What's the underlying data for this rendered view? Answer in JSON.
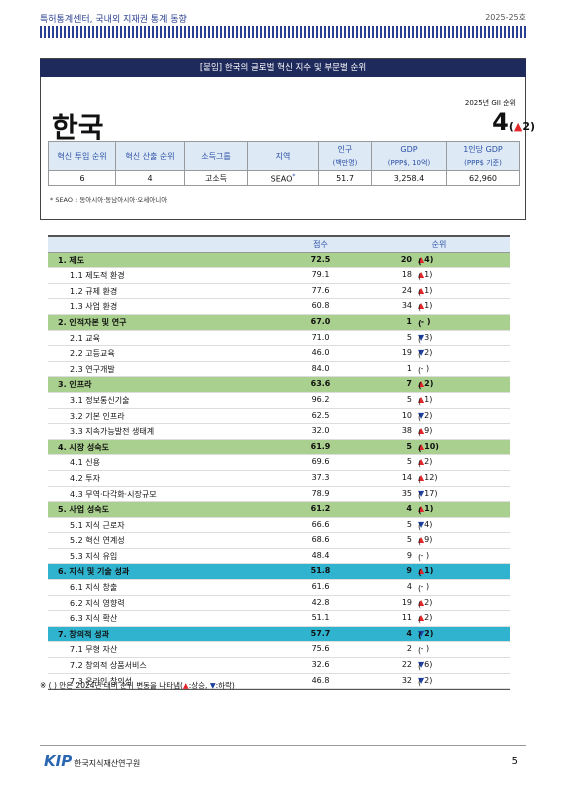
{
  "header": {
    "left": "특허통계센터, 국내외 지재권 통계 동향",
    "right": "2025-25호"
  },
  "box": {
    "title": "[붙임] 한국의 글로벌 혁신 지수 및 부문별 순위",
    "rank_note": "2025년 GII 순위",
    "country": "한국",
    "rank": "4",
    "rank_change": {
      "arrow": "▲",
      "delta": "2"
    },
    "info": {
      "headers": [
        "혁신 투입 순위",
        "혁신 산출 순위",
        "소득그룹",
        "지역",
        [
          "인구",
          "(백만명)"
        ],
        [
          "GDP",
          "(PPP$, 10억)"
        ],
        [
          "1인당 GDP",
          "(PPP$ 기준)"
        ]
      ],
      "values": [
        "6",
        "4",
        "고소득",
        "SEAO",
        "51.7",
        "3,258.4",
        "62,960"
      ],
      "region_mark": "*"
    },
    "footnote": "* SEAO : 동아시아·동남아시아·오세아니아"
  },
  "brackets": [
    "(",
    ")"
  ],
  "arrow_colors": {
    "▲": "#e3262a",
    "▼": "#1d3f9e"
  },
  "table": {
    "headers": [
      "점수",
      "순위"
    ],
    "sections": [
      {
        "label": "1. 제도",
        "score": "72.5",
        "rank": "20",
        "change": {
          "arrow": "▲",
          "delta": "4"
        },
        "color": "#a9d08e",
        "items": [
          {
            "label": "1.1 제도적 환경",
            "score": "79.1",
            "rank": "18",
            "change": {
              "arrow": "▲",
              "delta": "1"
            }
          },
          {
            "label": "1.2 규제 환경",
            "score": "77.6",
            "rank": "24",
            "change": {
              "arrow": "▲",
              "delta": "1"
            }
          },
          {
            "label": "1.3 사업 환경",
            "score": "60.8",
            "rank": "34",
            "change": {
              "arrow": "▲",
              "delta": "1"
            }
          }
        ]
      },
      {
        "label": "2. 인적자본 및 연구",
        "score": "67.0",
        "rank": "1",
        "change": {
          "delta": "-"
        },
        "color": "#a9d08e",
        "items": [
          {
            "label": "2.1 교육",
            "score": "71.0",
            "rank": "5",
            "change": {
              "arrow": "▼",
              "delta": "3"
            }
          },
          {
            "label": "2.2 고등교육",
            "score": "46.0",
            "rank": "19",
            "change": {
              "arrow": "▼",
              "delta": "2"
            }
          },
          {
            "label": "2.3 연구개발",
            "score": "84.0",
            "rank": "1",
            "change": {
              "delta": "-"
            }
          }
        ]
      },
      {
        "label": "3. 인프라",
        "score": "63.6",
        "rank": "7",
        "change": {
          "arrow": "▲",
          "delta": "2"
        },
        "color": "#a9d08e",
        "items": [
          {
            "label": "3.1 정보통신기술",
            "score": "96.2",
            "rank": "5",
            "change": {
              "arrow": "▲",
              "delta": "1"
            }
          },
          {
            "label": "3.2 기본 인프라",
            "score": "62.5",
            "rank": "10",
            "change": {
              "arrow": "▼",
              "delta": "2"
            }
          },
          {
            "label": "3.3 지속가능발전 생태계",
            "score": "32.0",
            "rank": "38",
            "change": {
              "arrow": "▲",
              "delta": "9"
            }
          }
        ]
      },
      {
        "label": "4. 시장 성숙도",
        "score": "61.9",
        "rank": "5",
        "change": {
          "arrow": "▲",
          "delta": "10"
        },
        "color": "#a9d08e",
        "items": [
          {
            "label": "4.1 신용",
            "score": "69.6",
            "rank": "5",
            "change": {
              "arrow": "▲",
              "delta": "2"
            }
          },
          {
            "label": "4.2 투자",
            "score": "37.3",
            "rank": "14",
            "change": {
              "arrow": "▲",
              "delta": "12"
            }
          },
          {
            "label": "4.3 무역·다각화·시장규모",
            "score": "78.9",
            "rank": "35",
            "change": {
              "arrow": "▼",
              "delta": "17"
            }
          }
        ]
      },
      {
        "label": "5. 사업 성숙도",
        "score": "61.2",
        "rank": "4",
        "change": {
          "arrow": "▲",
          "delta": "1"
        },
        "color": "#a9d08e",
        "items": [
          {
            "label": "5.1 지식 근로자",
            "score": "66.6",
            "rank": "5",
            "change": {
              "arrow": "▼",
              "delta": "4"
            }
          },
          {
            "label": "5.2 혁신 연계성",
            "score": "68.6",
            "rank": "5",
            "change": {
              "arrow": "▲",
              "delta": "9"
            }
          },
          {
            "label": "5.3 지식 유입",
            "score": "48.4",
            "rank": "9",
            "change": {
              "delta": "-"
            }
          }
        ]
      },
      {
        "label": "6. 지식 및 기술 성과",
        "score": "51.8",
        "rank": "9",
        "change": {
          "arrow": "▲",
          "delta": "1"
        },
        "color": "#2fb3cf",
        "items": [
          {
            "label": "6.1 지식 창출",
            "score": "61.6",
            "rank": "4",
            "change": {
              "delta": "-"
            }
          },
          {
            "label": "6.2 지식 영향력",
            "score": "42.8",
            "rank": "19",
            "change": {
              "arrow": "▲",
              "delta": "2"
            }
          },
          {
            "label": "6.3 지식 확산",
            "score": "51.1",
            "rank": "11",
            "change": {
              "arrow": "▲",
              "delta": "2"
            }
          }
        ]
      },
      {
        "label": "7. 창의적 성과",
        "score": "57.7",
        "rank": "4",
        "change": {
          "arrow": "▼",
          "delta": "2"
        },
        "color": "#2fb3cf",
        "items": [
          {
            "label": "7.1 무형 자산",
            "score": "75.6",
            "rank": "2",
            "change": {
              "delta": "-"
            }
          },
          {
            "label": "7.2 창의적 상품서비스",
            "score": "32.6",
            "rank": "22",
            "change": {
              "arrow": "▼",
              "delta": "6"
            }
          },
          {
            "label": "7.3 온라인 창의성",
            "score": "46.8",
            "rank": "32",
            "change": {
              "arrow": "▼",
              "delta": "2"
            }
          }
        ]
      }
    ]
  },
  "note": [
    "※ ( ) 안은 2024년 대비 순위 변동을 나타냄(",
    "▲",
    ":상승, ",
    "▼",
    ":하락)"
  ],
  "footer": {
    "logo": "KIP",
    "org": "한국지식재산연구원",
    "page": "5"
  }
}
